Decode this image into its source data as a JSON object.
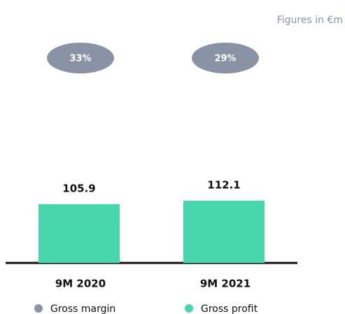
{
  "chart_data": {
    "type": "bar",
    "note_text": "Figures in €m",
    "categories": [
      "9M 2020",
      "9M 2021"
    ],
    "series": [
      {
        "name": "Gross margin",
        "color": "#8a93a6",
        "values": [
          33,
          29
        ],
        "value_labels": [
          "33%",
          "29%"
        ]
      },
      {
        "name": "Gross profit",
        "color": "#48d6ad",
        "values": [
          105.9,
          112.1
        ]
      }
    ]
  }
}
